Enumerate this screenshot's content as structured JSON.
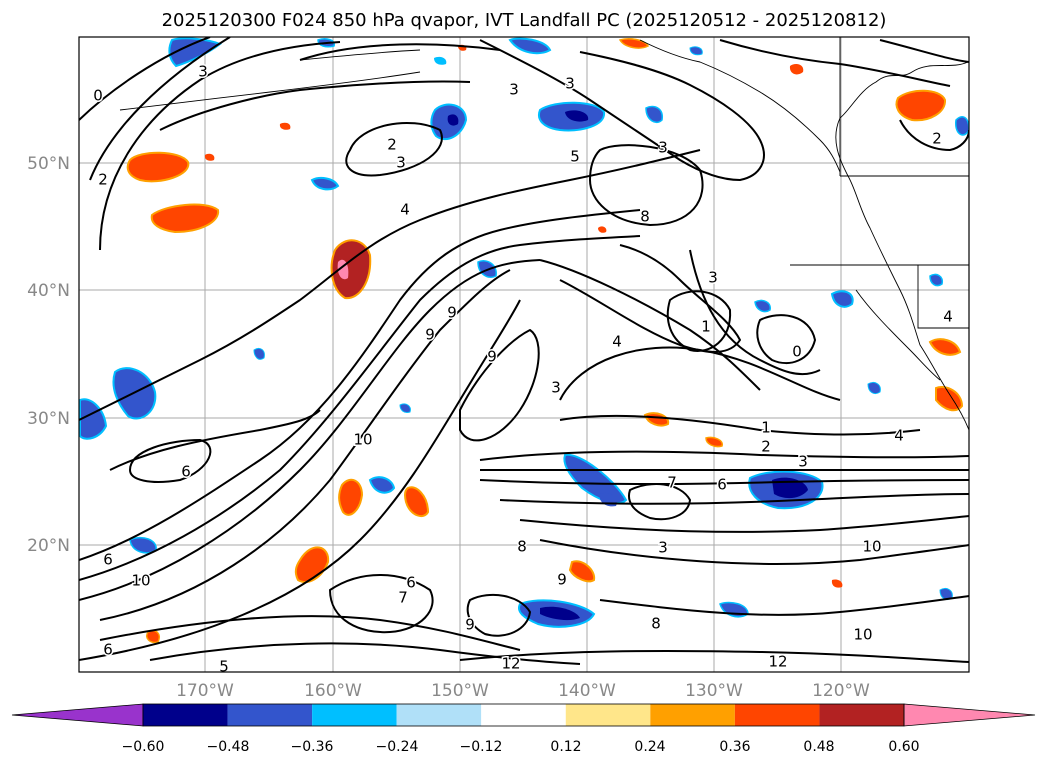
{
  "title": "2025120300 F024 850 hPa qvapor, IVT Landfall PC (2025120512 - 2025120812)",
  "lat_labels": [
    "50°N",
    "40°N",
    "30°N",
    "20°N"
  ],
  "lon_labels": [
    "170°W",
    "160°W",
    "150°W",
    "140°W",
    "130°W",
    "120°W"
  ],
  "colorbar": {
    "colors": [
      "#9933cc",
      "#00008b",
      "#3355cc",
      "#00bfff",
      "#b0e0f8",
      "#ffffff",
      "#ffe68a",
      "#ffa000",
      "#ff4500",
      "#b22222",
      "#ff88b0"
    ],
    "tick_labels": [
      "−0.60",
      "−0.48",
      "−0.36",
      "−0.24",
      "−0.12",
      "0.12",
      "0.24",
      "0.36",
      "0.48",
      "0.60"
    ]
  },
  "contour_labels": [
    "0",
    "3",
    "2",
    "2",
    "3",
    "3",
    "5",
    "3",
    "8",
    "4",
    "3",
    "9",
    "9",
    "9",
    "1",
    "4",
    "3",
    "0",
    "6",
    "1",
    "2",
    "3",
    "4",
    "6",
    "10",
    "7",
    "8",
    "6",
    "9",
    "7",
    "3",
    "10",
    "10",
    "9",
    "8",
    "12",
    "12",
    "5",
    "10",
    "6",
    "6",
    "3",
    "4",
    "2"
  ]
}
